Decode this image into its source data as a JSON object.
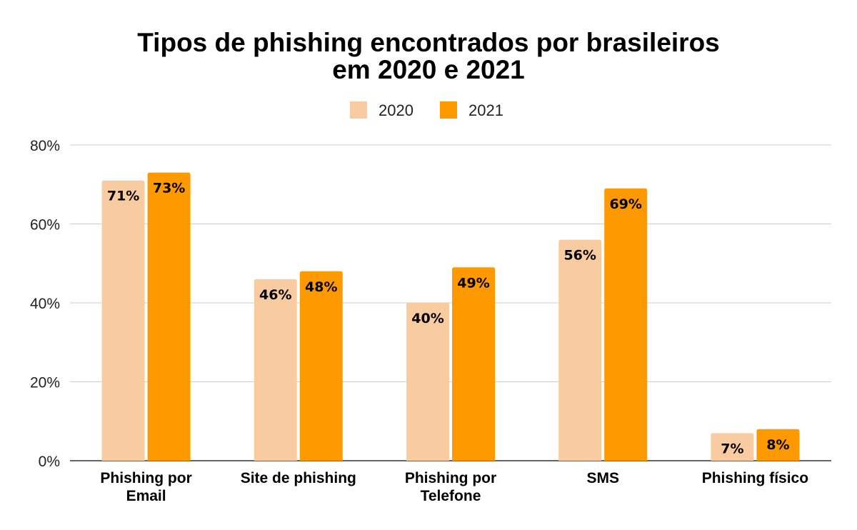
{
  "chart_data": {
    "type": "bar",
    "title": "Tipos de phishing encontrados por brasileiros em 2020 e 2021",
    "title_lines": [
      "Tipos de phishing encontrados por brasileiros",
      "em 2020 e 2021"
    ],
    "categories": [
      [
        "Phishing por",
        "Email"
      ],
      [
        "Site de phishing"
      ],
      [
        "Phishing por",
        "Telefone"
      ],
      [
        "SMS"
      ],
      [
        "Phishing físico"
      ]
    ],
    "series": [
      {
        "name": "2020",
        "color": "#f8cba0",
        "values": [
          71,
          46,
          40,
          56,
          7
        ],
        "labels": [
          "71%",
          "46%",
          "40%",
          "56%",
          "7%"
        ]
      },
      {
        "name": "2021",
        "color": "#ff9900",
        "values": [
          73,
          48,
          49,
          69,
          8
        ],
        "labels": [
          "73%",
          "48%",
          "49%",
          "69%",
          "8%"
        ]
      }
    ],
    "ylim": [
      0,
      80
    ],
    "yticks": [
      0,
      20,
      40,
      60,
      80
    ],
    "ytick_labels": [
      "0%",
      "20%",
      "40%",
      "60%",
      "80%"
    ],
    "grid": true,
    "grid_color": "#cccccc",
    "legend_position": "top-center",
    "xlabel": "",
    "ylabel": ""
  }
}
